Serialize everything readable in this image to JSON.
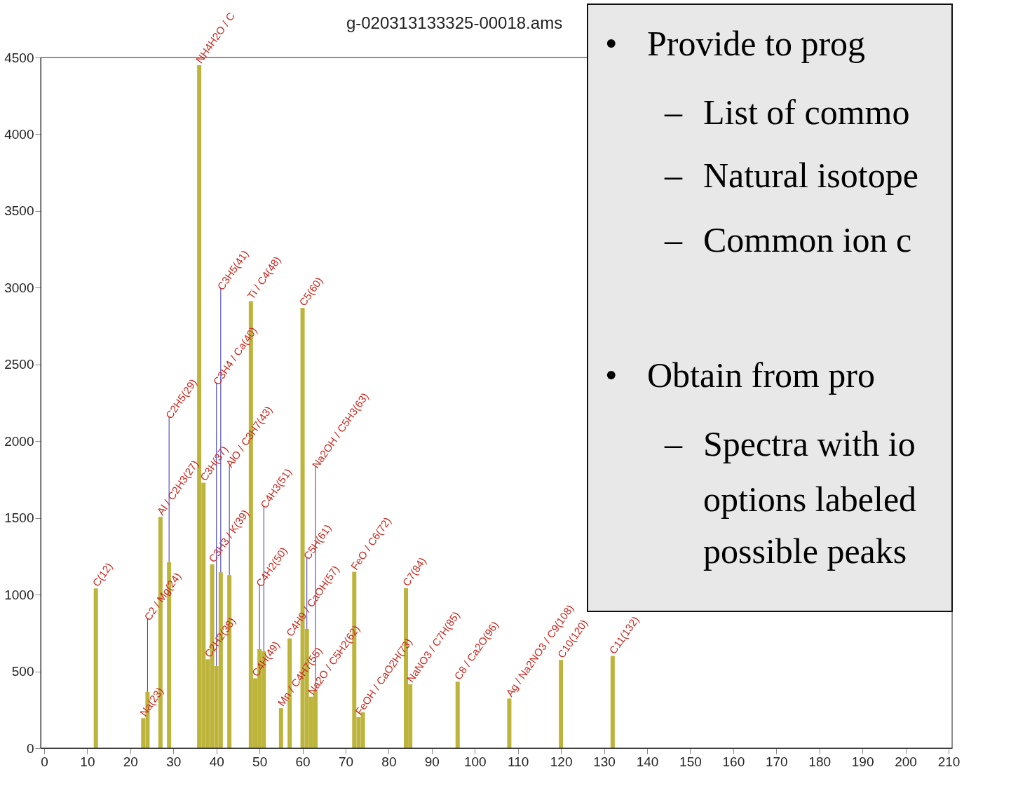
{
  "chart_data": [
    {
      "type": "bar",
      "title": "g-020313133325-00018.ams",
      "x": [
        12,
        23,
        24,
        27,
        29,
        36,
        37,
        38,
        39,
        40,
        41,
        43,
        48,
        49,
        50,
        51,
        55,
        57,
        60,
        61,
        62,
        63,
        72,
        73,
        74,
        84,
        85,
        96,
        108,
        120,
        132
      ],
      "values": [
        1040,
        195,
        367,
        1507,
        1211,
        4450,
        1729,
        579,
        1198,
        535,
        1145,
        1127,
        2913,
        455,
        645,
        632,
        260,
        715,
        2869,
        778,
        335,
        380,
        1149,
        203,
        234,
        1043,
        416,
        433,
        323,
        575,
        601
      ],
      "color": "#bdb43c",
      "xlim": [
        0,
        210
      ],
      "xticks": [
        0,
        10,
        20,
        30,
        40,
        50,
        60,
        70,
        80,
        90,
        100,
        110,
        120,
        130,
        140,
        150,
        160,
        170,
        180,
        190,
        200,
        210
      ],
      "ylim": [
        0,
        4500
      ],
      "yticks": [
        0,
        500,
        1000,
        1500,
        2000,
        2500,
        3000,
        3500,
        4000,
        4500
      ],
      "grid": false,
      "legend": false,
      "annotations": [
        {
          "text": "C(12)",
          "x": 12,
          "y": 1040
        },
        {
          "text": "Na(23)",
          "x": 23,
          "y": 195
        },
        {
          "text": "C2 / Mg(24)",
          "x": 24,
          "y": 367
        },
        {
          "text": "Al / C2H3(27)",
          "x": 27,
          "y": 1507
        },
        {
          "text": "C2H5(29)",
          "x": 29,
          "y": 1211
        },
        {
          "text": "NH4H2O / C",
          "x": 36,
          "y": 4450
        },
        {
          "text": "C3H(37)",
          "x": 37,
          "y": 1729
        },
        {
          "text": "C2H2(38)",
          "x": 38,
          "y": 579
        },
        {
          "text": "C3H3 / K(39)",
          "x": 39,
          "y": 1198
        },
        {
          "text": "C3H4 / Ca(40)",
          "x": 40,
          "y": 535
        },
        {
          "text": "C3H5(41)",
          "x": 41,
          "y": 1145
        },
        {
          "text": "AlO / C3H7(43)",
          "x": 43,
          "y": 1127
        },
        {
          "text": "Ti / C4(48)",
          "x": 48,
          "y": 2913
        },
        {
          "text": "C4H(49)",
          "x": 49,
          "y": 455
        },
        {
          "text": "C4H2(50)",
          "x": 50,
          "y": 645
        },
        {
          "text": "C4H3(51)",
          "x": 51,
          "y": 632
        },
        {
          "text": "Mn / C4H7(55)",
          "x": 55,
          "y": 260
        },
        {
          "text": "C4H9 / CaOH(57)",
          "x": 57,
          "y": 715
        },
        {
          "text": "C5(60)",
          "x": 60,
          "y": 2869
        },
        {
          "text": "C5H(61)",
          "x": 61,
          "y": 778
        },
        {
          "text": "Na2O / C5H2(62)",
          "x": 62,
          "y": 335
        },
        {
          "text": "Na2OH / C5H3(63)",
          "x": 63,
          "y": 380
        },
        {
          "text": "FeO / C6(72)",
          "x": 72,
          "y": 1149
        },
        {
          "text": "FeOH / CaO2H(73)",
          "x": 73,
          "y": 203
        },
        {
          "text": "C7(84)",
          "x": 84,
          "y": 1043
        },
        {
          "text": "NaNO3 / C7H(85)",
          "x": 85,
          "y": 416
        },
        {
          "text": "C8 / Ca2O(96)",
          "x": 96,
          "y": 433
        },
        {
          "text": "Ag / Na2NO3 / C9(108)",
          "x": 108,
          "y": 323
        },
        {
          "text": "C10(120)",
          "x": 120,
          "y": 575
        },
        {
          "text": "C11(132)",
          "x": 132,
          "y": 601
        }
      ]
    },
    {
      "type": "other",
      "annotations": [
        "•",
        "Provide to prog",
        "–",
        "List of commo",
        "–",
        "Natural isotope",
        "–",
        "Common ion c",
        "•",
        "Obtain from pro",
        "–",
        "Spectra with io",
        "options labeled",
        "possible peaks"
      ]
    }
  ]
}
